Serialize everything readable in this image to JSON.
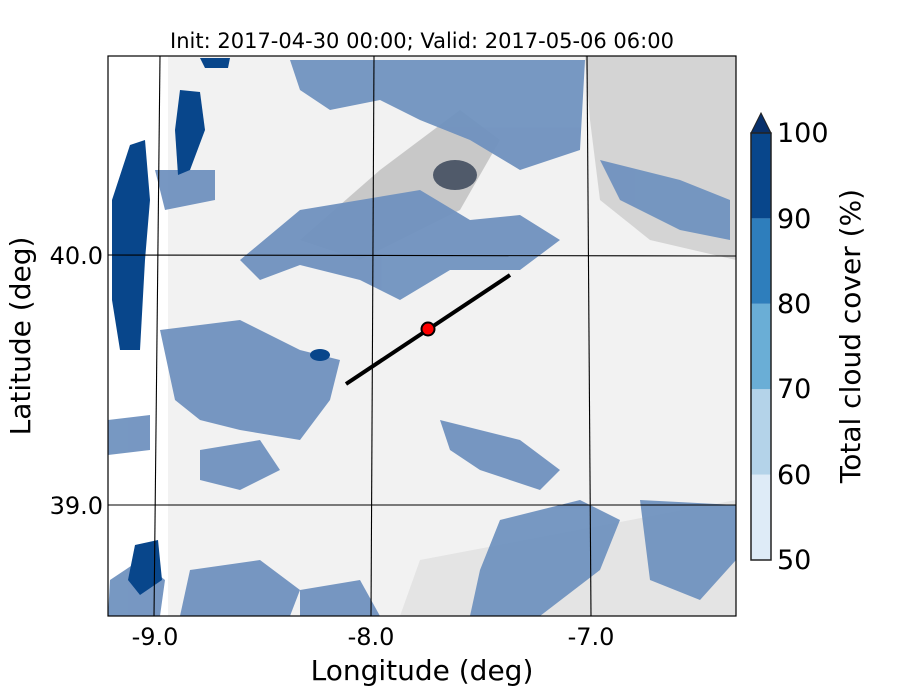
{
  "chart_data": {
    "type": "map",
    "title": "Init: 2017-04-30 00:00; Valid: 2017-05-06 06:00",
    "xlabel": "Longitude (deg)",
    "ylabel": "Latitude (deg)",
    "xticks": [
      "-9.0",
      "-8.0",
      "-7.0"
    ],
    "yticks": [
      "40.0",
      "39.0"
    ],
    "xlim": [
      -9.2,
      -6.35
    ],
    "ylim": [
      38.55,
      40.8
    ],
    "grid": true,
    "colorbar": {
      "label": "Total cloud cover (%)",
      "levels": [
        50,
        60,
        70,
        80,
        90,
        100
      ],
      "tick_labels": [
        "50",
        "60",
        "70",
        "80",
        "90",
        "100"
      ],
      "colors": [
        "#deebf7",
        "#b4d3e9",
        "#6aaed6",
        "#2e7ebc",
        "#08468b"
      ],
      "extend_color": "#08306b",
      "extend": "max",
      "position": "right"
    },
    "transect": {
      "start": [
        -8.11,
        39.48
      ],
      "end": [
        -7.37,
        39.92
      ],
      "color": "#000000"
    },
    "marker": {
      "lon": -7.74,
      "lat": 39.7,
      "color": "#ff0000"
    },
    "background_colors": {
      "terrain_light": "#f4f4f4",
      "terrain_mid": "#dcdcdc",
      "terrain_dark": "#9a9a9a"
    }
  }
}
